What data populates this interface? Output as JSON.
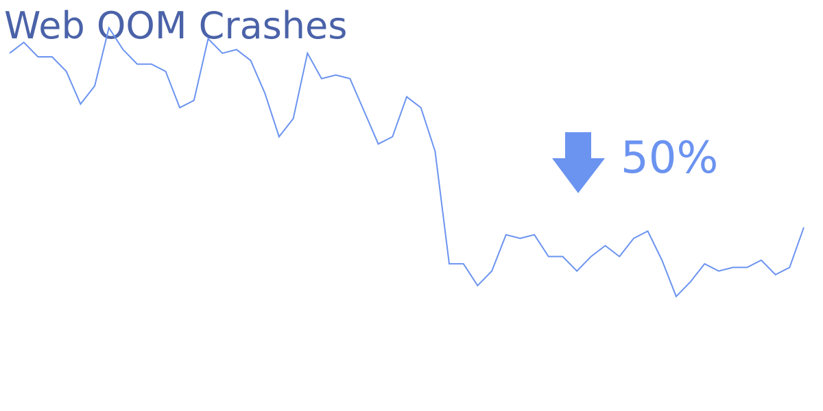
{
  "title": "Web OOM Crashes",
  "callout": {
    "direction": "down",
    "text": "50%",
    "icon": "arrow-down-icon",
    "color": "#6b93f0"
  },
  "colors": {
    "title": "#4a62a8",
    "line": "#6b93f0"
  },
  "chart_data": {
    "type": "line",
    "title": "Web OOM Crashes",
    "xlabel": "",
    "ylabel": "",
    "grid": false,
    "axes_visible": false,
    "ylim": [
      0,
      100
    ],
    "x": [
      0,
      1,
      2,
      3,
      4,
      5,
      6,
      7,
      8,
      9,
      10,
      11,
      12,
      13,
      14,
      15,
      16,
      17,
      18,
      19,
      20,
      21,
      22,
      23,
      24,
      25,
      26,
      27,
      28,
      29,
      30,
      31,
      32,
      33,
      34,
      35,
      36,
      37,
      38,
      39,
      40,
      41,
      42,
      43,
      44,
      45,
      46,
      47,
      48,
      49,
      50,
      51,
      52,
      53,
      54,
      55,
      56
    ],
    "series": [
      {
        "values": [
          91,
          94,
          90,
          90,
          86,
          77,
          82,
          98,
          92,
          88,
          88,
          86,
          76,
          78,
          95,
          91,
          92,
          89,
          80,
          68,
          73,
          91,
          84,
          85,
          84,
          75,
          66,
          68,
          79,
          76,
          64,
          33,
          33,
          27,
          31,
          41,
          40,
          41,
          35,
          35,
          31,
          35,
          38,
          35,
          40,
          42,
          34,
          24,
          28,
          33,
          31,
          32,
          32,
          34,
          30,
          32,
          43
        ]
      }
    ]
  }
}
